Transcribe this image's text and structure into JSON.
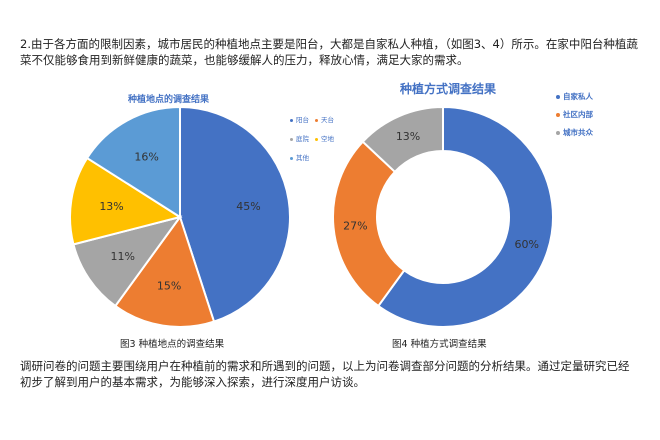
{
  "text": {
    "intro": "2.由于各方面的限制因素，城市居民的种植地点主要是阳台，大都是自家私人种植，（如图3、4）所示。在家中阳台种植蔬菜不仅能够食用到新鲜健康的蔬菜，也能够缓解人的压力，释放心情，满足大家的需求。",
    "conclusion": "调研问卷的问题主要围绕用户在种植前的需求和所遇到的问题，以上为问卷调查部分问题的分析结果。通过定量研究已经初步了解到用户的基本需求，为能够深入探索，进行深度用户访谈。"
  },
  "chart_data": [
    {
      "type": "pie",
      "title": "种植地点的调查结果",
      "caption": "图3  种植地点的调查结果",
      "slices": [
        {
          "label": "阳台",
          "value": 45,
          "display": "45%",
          "color": "#4472C4"
        },
        {
          "label": "天台",
          "value": 15,
          "display": "15%",
          "color": "#ED7D31"
        },
        {
          "label": "庭院",
          "value": 11,
          "display": "11%",
          "color": "#A5A5A5"
        },
        {
          "label": "空地",
          "value": 13,
          "display": "13%",
          "color": "#FFC000"
        },
        {
          "label": "其他",
          "value": 16,
          "display": "16%",
          "color": "#5B9BD5"
        }
      ],
      "legend_position": "right"
    },
    {
      "type": "doughnut",
      "title": "种植方式调查结果",
      "caption": "图4  种植方式调查结果",
      "slices": [
        {
          "label": "自家私人",
          "value": 60,
          "display": "60%",
          "color": "#4472C4"
        },
        {
          "label": "社区内部",
          "value": 27,
          "display": "27%",
          "color": "#ED7D31"
        },
        {
          "label": "城市共众",
          "value": 13,
          "display": "13%",
          "color": "#A5A5A5"
        }
      ],
      "legend_position": "right"
    }
  ]
}
